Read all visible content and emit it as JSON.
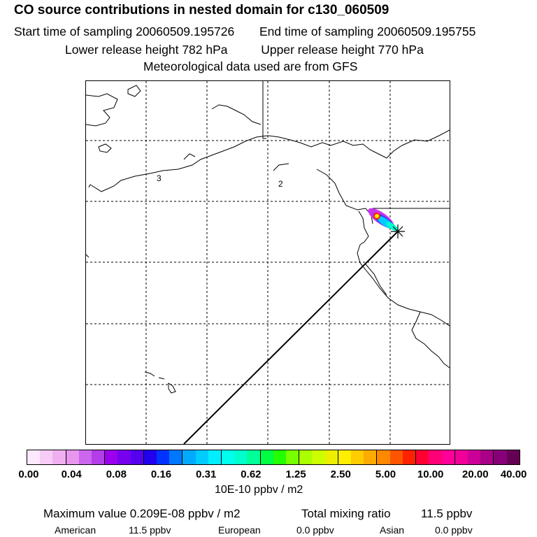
{
  "header": {
    "title": "CO  source contributions in nested domain for c130_060509",
    "start_label": "Start time of sampling 20060509.195726",
    "end_label": "End time of sampling 20060509.195755",
    "lower_label": "Lower release height  782 hPa",
    "upper_label": "Upper release height  770 hPa",
    "met_label": "Meteorological data used are from GFS"
  },
  "map": {
    "region_labels": [
      "3",
      "2"
    ]
  },
  "colorbar": {
    "colors": [
      "#fde8fd",
      "#f7ccf7",
      "#f0b0f0",
      "#e896ee",
      "#cc66ee",
      "#b33de8",
      "#9b00ee",
      "#7700ee",
      "#5500ee",
      "#2200ee",
      "#0033ff",
      "#0077ff",
      "#00aaff",
      "#00ccff",
      "#00eeff",
      "#00ffee",
      "#00ffcc",
      "#00ff99",
      "#00ff44",
      "#22ff00",
      "#77ff00",
      "#aaff00",
      "#ccff00",
      "#eeee00",
      "#ffee00",
      "#ffcc00",
      "#ffaa00",
      "#ff8800",
      "#ff5500",
      "#ff2200",
      "#ff0033",
      "#ff0077",
      "#ff0099",
      "#ee0099",
      "#cc0099",
      "#aa0088",
      "#880077",
      "#660055"
    ],
    "ticks": [
      "0.00",
      "0.04",
      "0.08",
      "0.16",
      "0.31",
      "0.62",
      "1.25",
      "2.50",
      "5.00",
      "10.00",
      "20.00",
      "40.00"
    ],
    "units": "10E-10 ppbv / m2"
  },
  "footer": {
    "max_value": "Maximum value  0.209E-08 ppbv / m2",
    "total_label": "Total mixing ratio",
    "total_value": "11.5 ppbv",
    "american_label": "American",
    "american_value": "11.5 ppbv",
    "european_label": "European",
    "european_value": "0.0 ppbv",
    "asian_label": "Asian",
    "asian_value": "0.0 ppbv"
  }
}
